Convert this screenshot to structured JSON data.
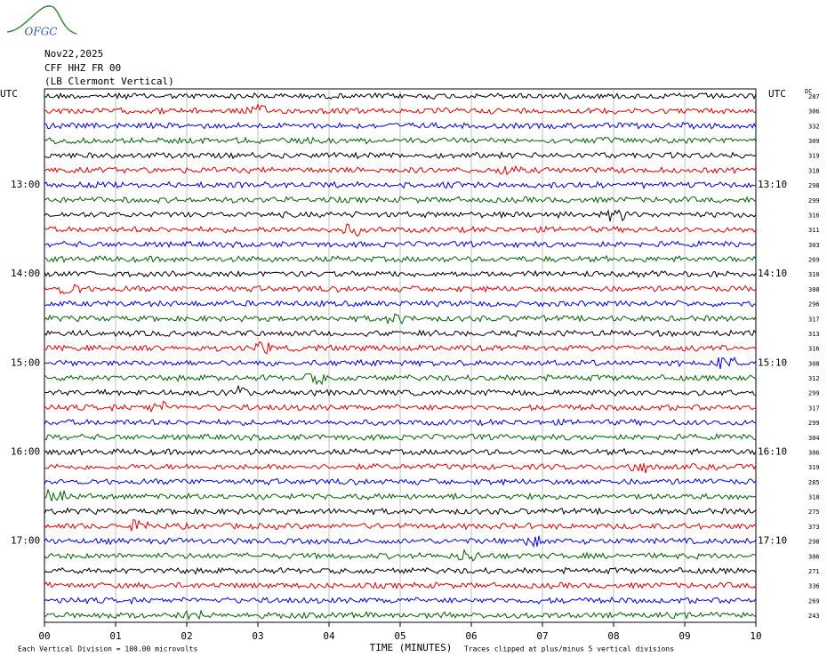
{
  "header": {
    "logo": "OFGC",
    "date": "Nov22,2025",
    "station": "CFF HHZ FR 00",
    "location": "(LB  Clermont Vertical)"
  },
  "left_axis": {
    "unit": "UTC",
    "labels": [
      "13:00",
      "14:00",
      "15:00",
      "16:00",
      "17:00"
    ]
  },
  "right_axis": {
    "unit": "UTC",
    "labels": [
      "13:10",
      "14:10",
      "15:10",
      "16:10",
      "17:10"
    ],
    "dc_title": "DC",
    "dc_values": [
      287,
      306,
      332,
      309,
      319,
      318,
      298,
      299,
      316,
      311,
      303,
      269,
      310,
      308,
      296,
      317,
      313,
      316,
      308,
      312,
      299,
      317,
      299,
      304,
      306,
      319,
      285,
      318,
      275,
      373,
      298,
      306,
      271,
      336,
      269,
      243
    ]
  },
  "x_axis": {
    "title": "TIME (MINUTES)",
    "ticks": [
      "00",
      "01",
      "02",
      "03",
      "04",
      "05",
      "06",
      "07",
      "08",
      "09",
      "10"
    ]
  },
  "footer": {
    "scale": "Each Vertical Division =  100.00 microvolts",
    "clip": "Traces clipped at plus/minus 5 vertical divisions"
  },
  "traces": {
    "colors": [
      "#000000",
      "#e00000",
      "#0000dd",
      "#006400"
    ]
  }
}
